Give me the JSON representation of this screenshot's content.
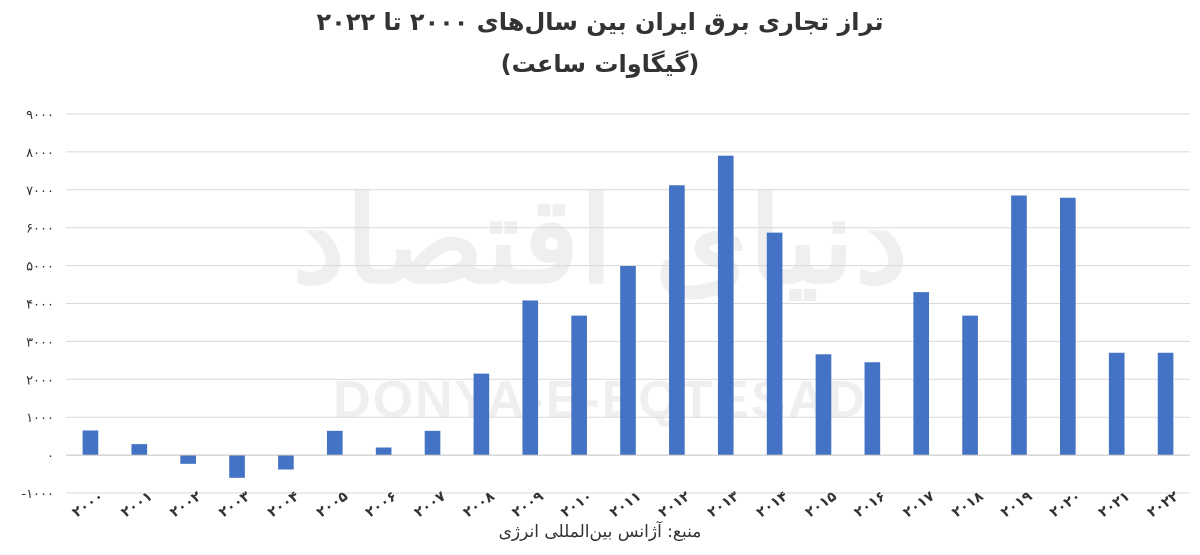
{
  "chart_data": {
    "type": "bar",
    "title": "تراز تجاری برق ایران بین سال‌های ۲۰۰۰ تا ۲۰۲۲",
    "subtitle": "(گیگاوات ساعت)",
    "source": "منبع: آژانس بین‌المللی انرژی",
    "watermark_fa": "دنیای اقتصاد",
    "watermark_en": "DONYA-E-EQTESAD",
    "categories": [
      "۲۰۰۰",
      "۲۰۰۱",
      "۲۰۰۲",
      "۲۰۰۳",
      "۲۰۰۴",
      "۲۰۰۵",
      "۲۰۰۶",
      "۲۰۰۷",
      "۲۰۰۸",
      "۲۰۰۹",
      "۲۰۱۰",
      "۲۰۱۱",
      "۲۰۱۲",
      "۲۰۱۳",
      "۲۰۱۴",
      "۲۰۱۵",
      "۲۰۱۶",
      "۲۰۱۷",
      "۲۰۱۸",
      "۲۰۱۹",
      "۲۰۲۰",
      "۲۰۲۱",
      "۲۰۲۲"
    ],
    "values": [
      650,
      290,
      -230,
      -600,
      -380,
      640,
      200,
      640,
      2150,
      4080,
      3680,
      4990,
      7120,
      7900,
      5870,
      2660,
      2450,
      4300,
      3680,
      6850,
      6790,
      2700,
      2700
    ],
    "ylim": [
      -1000,
      9000
    ],
    "yticks": [
      -1000,
      0,
      1000,
      2000,
      3000,
      4000,
      5000,
      6000,
      7000,
      8000,
      9000
    ],
    "ytick_labels": [
      "-۱۰۰۰",
      "۰",
      "۱۰۰۰",
      "۲۰۰۰",
      "۳۰۰۰",
      "۴۰۰۰",
      "۵۰۰۰",
      "۶۰۰۰",
      "۷۰۰۰",
      "۸۰۰۰",
      "۹۰۰۰"
    ],
    "grid": true,
    "bar_color": "#4472c4",
    "grid_color": "#d9d9d9",
    "xlabel": "",
    "ylabel": ""
  }
}
